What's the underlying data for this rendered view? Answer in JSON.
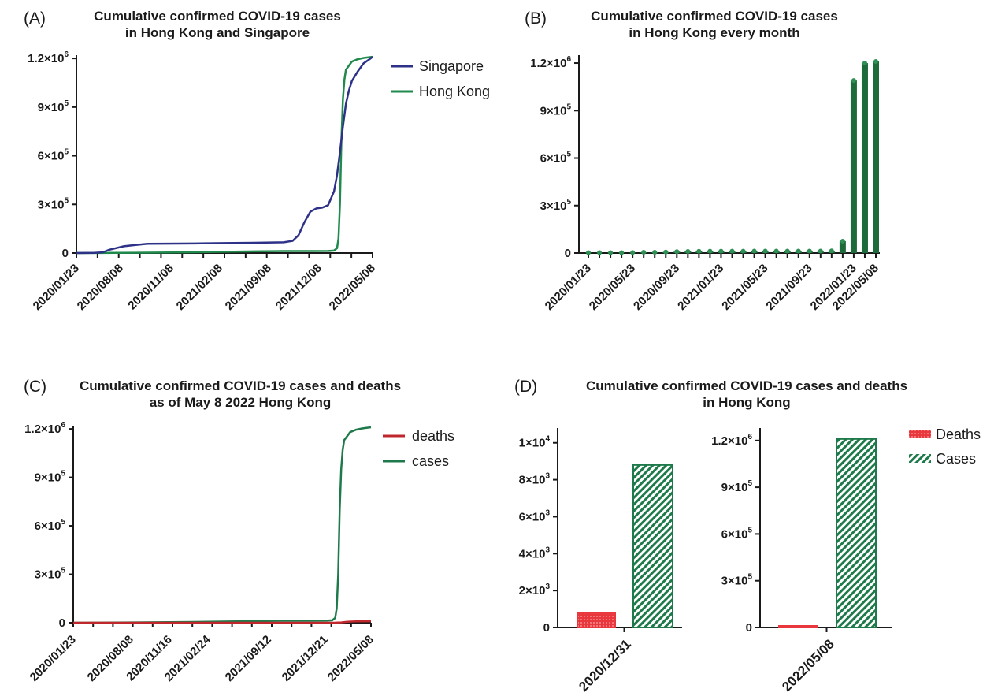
{
  "colors": {
    "singapore": "#2e3188",
    "hong_kong": "#1f8a4c",
    "bars_dark": "#1d6b3a",
    "deaths": "#c0272d",
    "cases_green": "#1e7a4a",
    "red_fill": "#e8383d",
    "axis": "#1a1a1a"
  },
  "chart_data": [
    {
      "panel": "(A)",
      "type": "line",
      "title": [
        "Cumulative confirmed COVID-19 cases",
        "in Hong Kong and Singapore"
      ],
      "y_ticks": [
        {
          "v": 0,
          "m": "0",
          "e": ""
        },
        {
          "v": 300000,
          "m": "3×10",
          "e": "5"
        },
        {
          "v": 600000,
          "m": "6×10",
          "e": "5"
        },
        {
          "v": 900000,
          "m": "9×10",
          "e": "5"
        },
        {
          "v": 1200000,
          "m": "1.2×10",
          "e": "6"
        }
      ],
      "ylim": [
        0,
        1220000
      ],
      "x_tick_labels": [
        "2020/01/23",
        "2020/08/08",
        "2020/11/08",
        "2021/02/08",
        "2021/09/08",
        "2021/12/08",
        "2022/05/08"
      ],
      "legend": "top-right",
      "series": [
        {
          "name": "Singapore",
          "color_key": "singapore",
          "x": [
            0,
            0.06,
            0.09,
            0.11,
            0.16,
            0.2,
            0.24,
            0.3,
            0.4,
            0.5,
            0.6,
            0.7,
            0.73,
            0.75,
            0.77,
            0.79,
            0.81,
            0.83,
            0.85,
            0.87,
            0.88,
            0.89,
            0.9,
            0.91,
            0.92,
            0.93,
            0.95,
            0.97,
            0.99,
            1.0
          ],
          "y": [
            0,
            1000,
            5000,
            20000,
            42000,
            50000,
            57000,
            58000,
            59000,
            61000,
            63000,
            66000,
            75000,
            110000,
            190000,
            255000,
            275000,
            280000,
            295000,
            380000,
            480000,
            620000,
            780000,
            920000,
            1000000,
            1060000,
            1120000,
            1170000,
            1195000,
            1210000
          ]
        },
        {
          "name": "Hong Kong",
          "color_key": "hong_kong",
          "x": [
            0,
            0.2,
            0.4,
            0.6,
            0.7,
            0.8,
            0.85,
            0.87,
            0.88,
            0.885,
            0.89,
            0.895,
            0.9,
            0.905,
            0.91,
            0.93,
            0.95,
            0.97,
            1.0
          ],
          "y": [
            0,
            2000,
            5000,
            10000,
            12000,
            12000,
            12500,
            15000,
            30000,
            90000,
            300000,
            700000,
            950000,
            1070000,
            1130000,
            1180000,
            1195000,
            1203000,
            1210000
          ]
        }
      ]
    },
    {
      "panel": "(B)",
      "type": "bar",
      "title": [
        "Cumulative confirmed COVID-19 cases",
        "in Hong Kong every month"
      ],
      "y_ticks": [
        {
          "v": 0,
          "m": "0",
          "e": ""
        },
        {
          "v": 300000,
          "m": "3×10",
          "e": "5"
        },
        {
          "v": 600000,
          "m": "6×10",
          "e": "5"
        },
        {
          "v": 900000,
          "m": "9×10",
          "e": "5"
        },
        {
          "v": 1200000,
          "m": "1.2×10",
          "e": "6"
        }
      ],
      "ylim": [
        0,
        1250000
      ],
      "x_tick_labels": [
        "2020/01/23",
        "2020/05/23",
        "2020/09/23",
        "2021/01/23",
        "2021/05/23",
        "2021/09/23",
        "2022/01/23",
        "2022/05/08"
      ],
      "values": [
        20,
        1000,
        1200,
        1500,
        3000,
        4800,
        5100,
        6000,
        8800,
        10000,
        11000,
        11800,
        11900,
        12000,
        12100,
        12200,
        12300,
        12400,
        12450,
        12500,
        12550,
        12600,
        14000,
        75000,
        1090000,
        1200000,
        1210000
      ]
    },
    {
      "panel": "(C)",
      "type": "line",
      "title": [
        "Cumulative confirmed COVID-19 cases and deaths",
        "as of May 8 2022 Hong Kong"
      ],
      "y_ticks": [
        {
          "v": 0,
          "m": "0",
          "e": ""
        },
        {
          "v": 300000,
          "m": "3×10",
          "e": "5"
        },
        {
          "v": 600000,
          "m": "6×10",
          "e": "5"
        },
        {
          "v": 900000,
          "m": "9×10",
          "e": "5"
        },
        {
          "v": 1200000,
          "m": "1.2×10",
          "e": "6"
        }
      ],
      "ylim": [
        0,
        1220000
      ],
      "x_tick_labels": [
        "2020/01/23",
        "2020/08/08",
        "2020/11/16",
        "2021/02/24",
        "2021/09/12",
        "2021/12/21",
        "2022/05/08"
      ],
      "legend": "top-right",
      "series": [
        {
          "name": "deaths",
          "color_key": "deaths",
          "x": [
            0,
            0.3,
            0.6,
            0.85,
            0.88,
            0.9,
            0.92,
            0.95,
            1.0
          ],
          "y": [
            0,
            100,
            200,
            213,
            300,
            2000,
            6000,
            8500,
            9100
          ]
        },
        {
          "name": "cases",
          "color_key": "cases_green",
          "x": [
            0,
            0.2,
            0.4,
            0.6,
            0.7,
            0.8,
            0.85,
            0.87,
            0.88,
            0.885,
            0.89,
            0.895,
            0.9,
            0.905,
            0.91,
            0.93,
            0.95,
            0.97,
            1.0
          ],
          "y": [
            0,
            2000,
            5000,
            10000,
            12000,
            12000,
            12500,
            15000,
            30000,
            90000,
            300000,
            700000,
            950000,
            1070000,
            1130000,
            1180000,
            1195000,
            1203000,
            1210000
          ]
        }
      ]
    },
    {
      "panel": "(D)",
      "type": "bar",
      "title": [
        "Cumulative confirmed COVID-19 cases and deaths",
        "in Hong Kong"
      ],
      "legend": "top-right",
      "series_names": [
        "Deaths",
        "Cases"
      ],
      "subcharts": [
        {
          "category": "2020/12/31",
          "y_ticks": [
            {
              "v": 0,
              "m": "0",
              "e": ""
            },
            {
              "v": 2000,
              "m": "2×10",
              "e": "3"
            },
            {
              "v": 4000,
              "m": "4×10",
              "e": "3"
            },
            {
              "v": 6000,
              "m": "6×10",
              "e": "3"
            },
            {
              "v": 8000,
              "m": "8×10",
              "e": "3"
            },
            {
              "v": 10000,
              "m": "1×10",
              "e": "4"
            }
          ],
          "ylim": [
            0,
            10800
          ],
          "values": {
            "Deaths": 780,
            "Cases": 8800
          }
        },
        {
          "category": "2022/05/08",
          "y_ticks": [
            {
              "v": 0,
              "m": "0",
              "e": ""
            },
            {
              "v": 300000,
              "m": "3×10",
              "e": "5"
            },
            {
              "v": 600000,
              "m": "6×10",
              "e": "5"
            },
            {
              "v": 900000,
              "m": "9×10",
              "e": "5"
            },
            {
              "v": 1200000,
              "m": "1.2×10",
              "e": "6"
            }
          ],
          "ylim": [
            0,
            1280000
          ],
          "values": {
            "Deaths": 9100,
            "Cases": 1210000
          }
        }
      ]
    }
  ]
}
